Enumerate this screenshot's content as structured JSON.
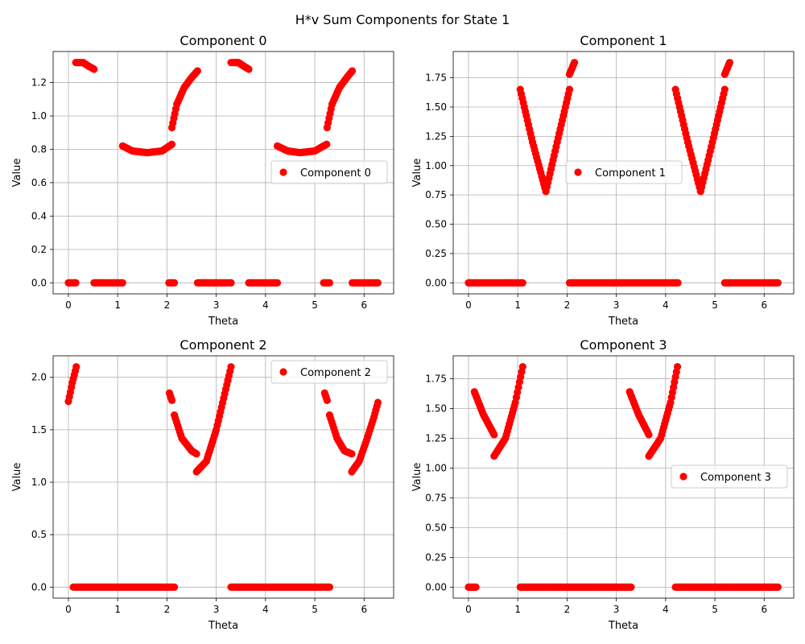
{
  "figure": {
    "title": "H*v Sum Components for State 1"
  },
  "chart_data": [
    {
      "type": "scatter",
      "title": "Component 0",
      "xlabel": "Theta",
      "ylabel": "Value",
      "xlim": [
        -0.31,
        6.6
      ],
      "ylim": [
        -0.066,
        1.386
      ],
      "xticks": [
        "0",
        "1",
        "2",
        "3",
        "4",
        "5",
        "6"
      ],
      "yticks": [
        "0.0",
        "0.2",
        "0.4",
        "0.6",
        "0.8",
        "1.0",
        "1.2"
      ],
      "ytick_values": [
        0,
        0.2,
        0.4,
        0.6,
        0.8,
        1.0,
        1.2
      ],
      "grid": true,
      "legend_position": "center-right",
      "color": "#ff0000",
      "series": [
        {
          "name": "Component 0",
          "segments": [
            {
              "x": [
                0.0,
                0.15
              ],
              "y": [
                0,
                0
              ]
            },
            {
              "x": [
                0.15,
                0.3,
                0.4,
                0.52
              ],
              "y": [
                1.32,
                1.32,
                1.3,
                1.28
              ]
            },
            {
              "x": [
                0.52,
                1.1
              ],
              "y": [
                0,
                0
              ]
            },
            {
              "x": [
                1.1,
                1.3,
                1.6,
                1.9,
                2.1
              ],
              "y": [
                0.82,
                0.79,
                0.78,
                0.79,
                0.83
              ]
            },
            {
              "x": [
                2.04,
                2.15
              ],
              "y": [
                0,
                0
              ]
            },
            {
              "x": [
                2.1,
                2.2,
                2.35,
                2.5,
                2.62
              ],
              "y": [
                0.93,
                1.07,
                1.17,
                1.23,
                1.27
              ]
            },
            {
              "x": [
                2.62,
                3.3
              ],
              "y": [
                0,
                0
              ]
            },
            {
              "x": [
                3.3,
                3.45,
                3.55,
                3.66
              ],
              "y": [
                1.32,
                1.32,
                1.3,
                1.28
              ]
            },
            {
              "x": [
                3.66,
                4.24
              ],
              "y": [
                0,
                0
              ]
            },
            {
              "x": [
                4.24,
                4.45,
                4.7,
                5.0,
                5.24
              ],
              "y": [
                0.82,
                0.79,
                0.78,
                0.79,
                0.83
              ]
            },
            {
              "x": [
                5.18,
                5.3
              ],
              "y": [
                0,
                0
              ]
            },
            {
              "x": [
                5.25,
                5.35,
                5.5,
                5.65,
                5.76
              ],
              "y": [
                0.93,
                1.07,
                1.17,
                1.23,
                1.27
              ]
            },
            {
              "x": [
                5.76,
                6.28
              ],
              "y": [
                0,
                0
              ]
            }
          ]
        }
      ]
    },
    {
      "type": "scatter",
      "title": "Component 1",
      "xlabel": "Theta",
      "ylabel": "Value",
      "xlim": [
        -0.31,
        6.6
      ],
      "ylim": [
        -0.094,
        1.974
      ],
      "xticks": [
        "0",
        "1",
        "2",
        "3",
        "4",
        "5",
        "6"
      ],
      "yticks": [
        "0.00",
        "0.25",
        "0.50",
        "0.75",
        "1.00",
        "1.25",
        "1.50",
        "1.75"
      ],
      "ytick_values": [
        0,
        0.25,
        0.5,
        0.75,
        1.0,
        1.25,
        1.5,
        1.75
      ],
      "grid": true,
      "legend_position": "center",
      "color": "#ff0000",
      "series": [
        {
          "name": "Component 1",
          "segments": [
            {
              "x": [
                0.0,
                1.1
              ],
              "y": [
                0,
                0
              ]
            },
            {
              "x": [
                1.05,
                1.3,
                1.57
              ],
              "y": [
                1.65,
                1.2,
                0.78
              ]
            },
            {
              "x": [
                1.57,
                1.8,
                2.05
              ],
              "y": [
                0.78,
                1.2,
                1.65
              ]
            },
            {
              "x": [
                2.05,
                2.1,
                2.15
              ],
              "y": [
                1.78,
                1.83,
                1.88
              ]
            },
            {
              "x": [
                2.05,
                4.25
              ],
              "y": [
                0,
                0
              ]
            },
            {
              "x": [
                4.2,
                4.45,
                4.71
              ],
              "y": [
                1.65,
                1.2,
                0.78
              ]
            },
            {
              "x": [
                4.71,
                4.95,
                5.2
              ],
              "y": [
                0.78,
                1.2,
                1.65
              ]
            },
            {
              "x": [
                5.2,
                5.25,
                5.3
              ],
              "y": [
                1.78,
                1.83,
                1.88
              ]
            },
            {
              "x": [
                5.2,
                6.28
              ],
              "y": [
                0,
                0
              ]
            }
          ]
        }
      ]
    },
    {
      "type": "scatter",
      "title": "Component 2",
      "xlabel": "Theta",
      "ylabel": "Value",
      "xlim": [
        -0.31,
        6.6
      ],
      "ylim": [
        -0.105,
        2.205
      ],
      "xticks": [
        "0",
        "1",
        "2",
        "3",
        "4",
        "5",
        "6"
      ],
      "yticks": [
        "0.0",
        "0.5",
        "1.0",
        "1.5",
        "2.0"
      ],
      "ytick_values": [
        0,
        0.5,
        1.0,
        1.5,
        2.0
      ],
      "grid": true,
      "legend_position": "top-right",
      "color": "#ff0000",
      "series": [
        {
          "name": "Component 2",
          "segments": [
            {
              "x": [
                0.0,
                0.08,
                0.16
              ],
              "y": [
                1.77,
                1.95,
                2.1
              ]
            },
            {
              "x": [
                0.1,
                2.15
              ],
              "y": [
                0,
                0
              ]
            },
            {
              "x": [
                2.05,
                2.1
              ],
              "y": [
                1.85,
                1.78
              ]
            },
            {
              "x": [
                2.15,
                2.3,
                2.5,
                2.6
              ],
              "y": [
                1.64,
                1.42,
                1.3,
                1.27
              ]
            },
            {
              "x": [
                2.6,
                2.8,
                3.0,
                3.15,
                3.3
              ],
              "y": [
                1.1,
                1.2,
                1.5,
                1.8,
                2.1
              ]
            },
            {
              "x": [
                3.3,
                5.3
              ],
              "y": [
                0,
                0
              ]
            },
            {
              "x": [
                5.2,
                5.25
              ],
              "y": [
                1.85,
                1.78
              ]
            },
            {
              "x": [
                5.3,
                5.45,
                5.6,
                5.75
              ],
              "y": [
                1.64,
                1.42,
                1.3,
                1.27
              ]
            },
            {
              "x": [
                5.75,
                5.9,
                6.05,
                6.2,
                6.28
              ],
              "y": [
                1.1,
                1.2,
                1.4,
                1.62,
                1.76
              ]
            }
          ]
        }
      ]
    },
    {
      "type": "scatter",
      "title": "Component 3",
      "xlabel": "Theta",
      "ylabel": "Value",
      "xlim": [
        -0.31,
        6.6
      ],
      "ylim": [
        -0.092,
        1.942
      ],
      "xticks": [
        "0",
        "1",
        "2",
        "3",
        "4",
        "5",
        "6"
      ],
      "yticks": [
        "0.00",
        "0.25",
        "0.50",
        "0.75",
        "1.00",
        "1.25",
        "1.50",
        "1.75"
      ],
      "ytick_values": [
        0,
        0.25,
        0.5,
        0.75,
        1.0,
        1.25,
        1.5,
        1.75
      ],
      "grid": true,
      "legend_position": "center-right",
      "color": "#ff0000",
      "series": [
        {
          "name": "Component 3",
          "segments": [
            {
              "x": [
                0.0,
                0.15
              ],
              "y": [
                0,
                0
              ]
            },
            {
              "x": [
                0.12,
                0.3,
                0.52
              ],
              "y": [
                1.64,
                1.45,
                1.28
              ]
            },
            {
              "x": [
                0.52,
                0.75,
                0.95,
                1.1
              ],
              "y": [
                1.1,
                1.25,
                1.55,
                1.85
              ]
            },
            {
              "x": [
                1.05,
                3.3
              ],
              "y": [
                0,
                0
              ]
            },
            {
              "x": [
                3.27,
                3.45,
                3.66
              ],
              "y": [
                1.64,
                1.45,
                1.28
              ]
            },
            {
              "x": [
                3.66,
                3.9,
                4.1,
                4.24
              ],
              "y": [
                1.1,
                1.25,
                1.55,
                1.85
              ]
            },
            {
              "x": [
                4.2,
                6.28
              ],
              "y": [
                0,
                0
              ]
            }
          ]
        }
      ]
    }
  ]
}
